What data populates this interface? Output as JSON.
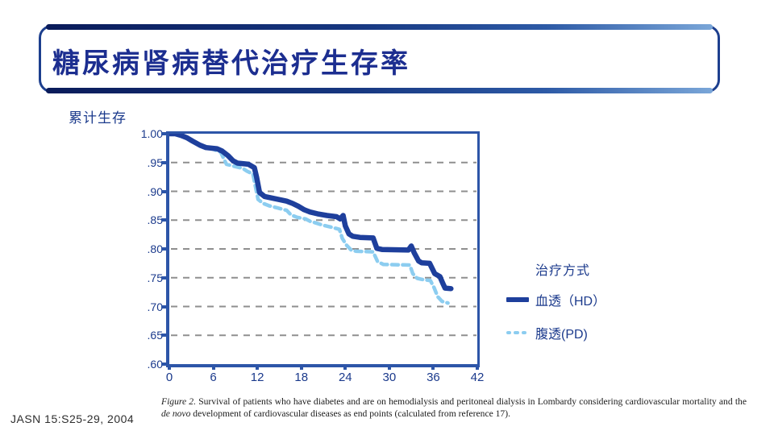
{
  "slide": {
    "title": "糖尿病肾病替代治疗生存率",
    "footer_citation": "JASN 15:S25-29, 2004",
    "caption": {
      "figure_label": "Figure 2.",
      "part1": "Survival of patients who have diabetes and are on hemodialysis and peritoneal dialysis in Lombardy considering cardiovascular mortality and the",
      "italic_phrase": "de novo",
      "part2": "development of cardiovascular diseases as end points (calculated from reference 17)."
    }
  },
  "colors": {
    "title_navy": "#1c2e90",
    "text_navy": "#1b3a8c",
    "axis_navy": "#2d55a8",
    "navy_border": "#1d3f8e",
    "grid_gray": "#8f8f8f",
    "hd_line": "#1e3f9c",
    "pd_line": "#8ccdf0"
  },
  "chart_data": {
    "type": "line",
    "subtype": "kaplan-meier-survival-steps",
    "ylabel": "累计生存",
    "xlabel": "",
    "xlim": [
      0,
      42
    ],
    "ylim": [
      0.6,
      1.0
    ],
    "x_ticks": [
      0,
      6,
      12,
      18,
      24,
      30,
      36,
      42
    ],
    "y_ticks": [
      {
        "value": 1.0,
        "label": "1.00"
      },
      {
        "value": 0.95,
        "label": ".95"
      },
      {
        "value": 0.9,
        "label": ".90"
      },
      {
        "value": 0.85,
        "label": ".85"
      },
      {
        "value": 0.8,
        "label": ".80"
      },
      {
        "value": 0.75,
        "label": ".75"
      },
      {
        "value": 0.7,
        "label": ".70"
      },
      {
        "value": 0.65,
        "label": ".65"
      },
      {
        "value": 0.6,
        "label": ".60"
      }
    ],
    "grid": {
      "horizontal_dashed_at": [
        0.95,
        0.9,
        0.85,
        0.8,
        0.75,
        0.7,
        0.65
      ]
    },
    "legend": {
      "title": "治疗方式",
      "position": "right"
    },
    "series": [
      {
        "name": "腹透(PD)",
        "style": "dashed",
        "color": "#8ccdf0",
        "points": [
          [
            0,
            1.0
          ],
          [
            0.8,
            1.0
          ],
          [
            1.6,
            0.997
          ],
          [
            2.4,
            0.993
          ],
          [
            3.2,
            0.987
          ],
          [
            4.2,
            0.98
          ],
          [
            5,
            0.976
          ],
          [
            6,
            0.973
          ],
          [
            7,
            0.968
          ],
          [
            7.8,
            0.947
          ],
          [
            9,
            0.943
          ],
          [
            10,
            0.94
          ],
          [
            10.6,
            0.935
          ],
          [
            11.4,
            0.93
          ],
          [
            11.8,
            0.905
          ],
          [
            12.1,
            0.886
          ],
          [
            12.8,
            0.879
          ],
          [
            13.6,
            0.875
          ],
          [
            14.8,
            0.871
          ],
          [
            16,
            0.867
          ],
          [
            16.6,
            0.859
          ],
          [
            17.4,
            0.855
          ],
          [
            18.6,
            0.852
          ],
          [
            19.2,
            0.848
          ],
          [
            20,
            0.845
          ],
          [
            21,
            0.841
          ],
          [
            22,
            0.838
          ],
          [
            23.2,
            0.834
          ],
          [
            23.6,
            0.818
          ],
          [
            24.2,
            0.806
          ],
          [
            24.8,
            0.798
          ],
          [
            25.5,
            0.796
          ],
          [
            27.8,
            0.795
          ],
          [
            28.4,
            0.778
          ],
          [
            29.2,
            0.773
          ],
          [
            32.8,
            0.772
          ],
          [
            33.2,
            0.757
          ],
          [
            33.8,
            0.749
          ],
          [
            34.5,
            0.747
          ],
          [
            35.6,
            0.745
          ],
          [
            36.1,
            0.733
          ],
          [
            36.6,
            0.717
          ],
          [
            37.2,
            0.709
          ],
          [
            38.0,
            0.706
          ]
        ]
      },
      {
        "name": "血透（HD）",
        "style": "solid",
        "color": "#1e3f9c",
        "points": [
          [
            0,
            1.0
          ],
          [
            0.8,
            1.0
          ],
          [
            1.6,
            0.997
          ],
          [
            2.4,
            0.993
          ],
          [
            3.2,
            0.987
          ],
          [
            4.2,
            0.98
          ],
          [
            5,
            0.976
          ],
          [
            6.5,
            0.974
          ],
          [
            7.2,
            0.97
          ],
          [
            8,
            0.962
          ],
          [
            8.7,
            0.953
          ],
          [
            9.3,
            0.949
          ],
          [
            10.8,
            0.947
          ],
          [
            11.6,
            0.941
          ],
          [
            11.9,
            0.925
          ],
          [
            12.3,
            0.898
          ],
          [
            13,
            0.891
          ],
          [
            14.5,
            0.887
          ],
          [
            16,
            0.883
          ],
          [
            16.8,
            0.879
          ],
          [
            17.6,
            0.874
          ],
          [
            18.4,
            0.868
          ],
          [
            19.2,
            0.864
          ],
          [
            20.2,
            0.861
          ],
          [
            21.5,
            0.858
          ],
          [
            22.8,
            0.856
          ],
          [
            23.3,
            0.852
          ],
          [
            23.7,
            0.858
          ],
          [
            24.0,
            0.84
          ],
          [
            24.5,
            0.826
          ],
          [
            25,
            0.822
          ],
          [
            26,
            0.82
          ],
          [
            27.8,
            0.819
          ],
          [
            28.3,
            0.801
          ],
          [
            29,
            0.799
          ],
          [
            32.6,
            0.798
          ],
          [
            33.0,
            0.805
          ],
          [
            33.4,
            0.793
          ],
          [
            34.0,
            0.779
          ],
          [
            34.4,
            0.776
          ],
          [
            35.5,
            0.775
          ],
          [
            36.2,
            0.757
          ],
          [
            36.9,
            0.752
          ],
          [
            37.3,
            0.74
          ],
          [
            37.6,
            0.732
          ],
          [
            38.4,
            0.731
          ]
        ]
      }
    ]
  }
}
